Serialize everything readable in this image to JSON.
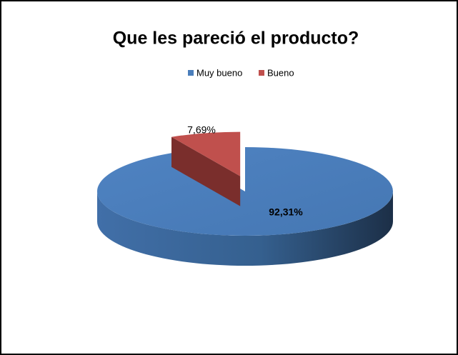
{
  "chart_data": {
    "type": "pie",
    "title": "Que les pareció el producto?",
    "categories": [
      "Muy bueno",
      "Bueno"
    ],
    "values": [
      92.31,
      7.69
    ],
    "value_labels": [
      "92,31%",
      "7,69%"
    ],
    "colors": [
      "#4a7ebb",
      "#c0504d"
    ],
    "legend": "top"
  }
}
